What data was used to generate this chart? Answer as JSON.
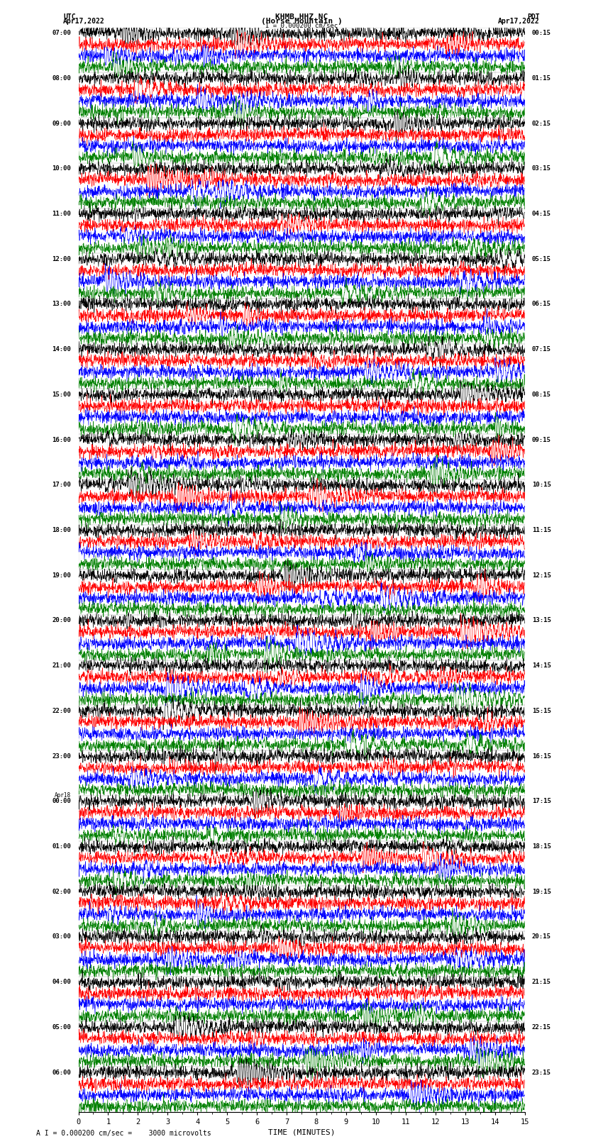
{
  "title_line1": "KHMB HHZ NC",
  "title_line2": "(Horse Mountain )",
  "title_line3": "I = 0.000200 cm/sec",
  "label_utc": "UTC",
  "label_pdt": "PDT",
  "date_left": "Apr17,2022",
  "date_right": "Apr17,2022",
  "xlabel": "TIME (MINUTES)",
  "footer": "A I = 0.000200 cm/sec =    3000 microvolts",
  "utc_times": [
    "07:00",
    "08:00",
    "09:00",
    "10:00",
    "11:00",
    "12:00",
    "13:00",
    "14:00",
    "15:00",
    "16:00",
    "17:00",
    "18:00",
    "19:00",
    "20:00",
    "21:00",
    "22:00",
    "23:00",
    "00:00",
    "01:00",
    "02:00",
    "03:00",
    "04:00",
    "05:00",
    "06:00"
  ],
  "pdt_times": [
    "00:15",
    "01:15",
    "02:15",
    "03:15",
    "04:15",
    "05:15",
    "06:15",
    "07:15",
    "08:15",
    "09:15",
    "10:15",
    "11:15",
    "12:15",
    "13:15",
    "14:15",
    "15:15",
    "16:15",
    "17:15",
    "18:15",
    "19:15",
    "20:15",
    "21:15",
    "22:15",
    "23:15"
  ],
  "apr18_group": 17,
  "colors": [
    "black",
    "red",
    "blue",
    "green"
  ],
  "bg_color": "white",
  "fig_width": 8.5,
  "fig_height": 16.13,
  "xlim": [
    0,
    15
  ],
  "samples": 1800,
  "noise_std": 0.28,
  "event_prob": 0.45,
  "seed": 42
}
